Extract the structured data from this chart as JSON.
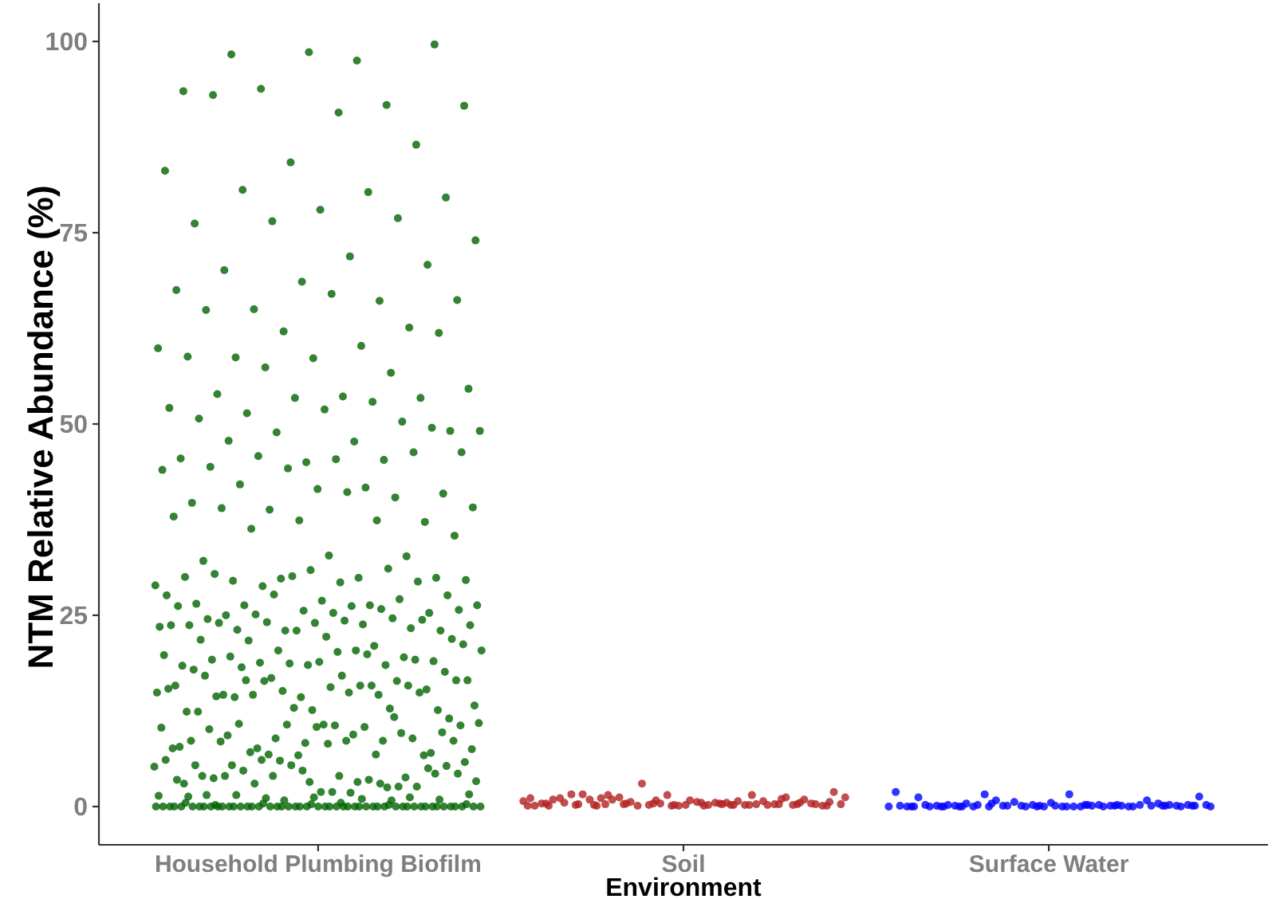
{
  "chart_data": {
    "type": "scatter",
    "xlabel": "Environment",
    "ylabel": "NTM Relative Abundance (%)",
    "categories": [
      "Household Plumbing Biofilm",
      "Soil",
      "Surface Water"
    ],
    "ylim": [
      -5,
      105
    ],
    "yticks": [
      0,
      25,
      50,
      75,
      100
    ],
    "marker": "circle",
    "series": [
      {
        "color": "#006400",
        "x": [
          "Household Plumbing Biofilm",
          "Household Plumbing Biofilm",
          "Household Plumbing Biofilm",
          "Household Plumbing Biofilm",
          "Household Plumbing Biofilm",
          "Household Plumbing Biofilm",
          "Household Plumbing Biofilm",
          "Household Plumbing Biofilm",
          "Household Plumbing Biofilm",
          "Household Plumbing Biofilm",
          "Household Plumbing Biofilm",
          "Household Plumbing Biofilm",
          "Household Plumbing Biofilm",
          "Household Plumbing Biofilm",
          "Household Plumbing Biofilm",
          "Household Plumbing Biofilm",
          "Household Plumbing Biofilm",
          "Household Plumbing Biofilm",
          "Household Plumbing Biofilm",
          "Household Plumbing Biofilm",
          "Household Plumbing Biofilm",
          "Household Plumbing Biofilm",
          "Household Plumbing Biofilm",
          "Household Plumbing Biofilm",
          "Household Plumbing Biofilm",
          "Household Plumbing Biofilm",
          "Household Plumbing Biofilm",
          "Household Plumbing Biofilm",
          "Household Plumbing Biofilm",
          "Household Plumbing Biofilm",
          "Household Plumbing Biofilm",
          "Household Plumbing Biofilm",
          "Household Plumbing Biofilm",
          "Household Plumbing Biofilm",
          "Household Plumbing Biofilm",
          "Household Plumbing Biofilm",
          "Household Plumbing Biofilm",
          "Household Plumbing Biofilm",
          "Household Plumbing Biofilm",
          "Household Plumbing Biofilm",
          "Household Plumbing Biofilm",
          "Household Plumbing Biofilm",
          "Household Plumbing Biofilm",
          "Household Plumbing Biofilm",
          "Household Plumbing Biofilm",
          "Household Plumbing Biofilm",
          "Household Plumbing Biofilm",
          "Household Plumbing Biofilm",
          "Household Plumbing Biofilm",
          "Household Plumbing Biofilm",
          "Household Plumbing Biofilm",
          "Household Plumbing Biofilm",
          "Household Plumbing Biofilm",
          "Household Plumbing Biofilm",
          "Household Plumbing Biofilm",
          "Household Plumbing Biofilm",
          "Household Plumbing Biofilm",
          "Household Plumbing Biofilm",
          "Household Plumbing Biofilm",
          "Household Plumbing Biofilm",
          "Household Plumbing Biofilm",
          "Household Plumbing Biofilm",
          "Household Plumbing Biofilm",
          "Household Plumbing Biofilm",
          "Household Plumbing Biofilm",
          "Household Plumbing Biofilm",
          "Household Plumbing Biofilm",
          "Household Plumbing Biofilm",
          "Household Plumbing Biofilm",
          "Household Plumbing Biofilm",
          "Household Plumbing Biofilm",
          "Household Plumbing Biofilm",
          "Household Plumbing Biofilm",
          "Household Plumbing Biofilm",
          "Household Plumbing Biofilm",
          "Household Plumbing Biofilm",
          "Household Plumbing Biofilm",
          "Household Plumbing Biofilm",
          "Household Plumbing Biofilm",
          "Household Plumbing Biofilm",
          "Household Plumbing Biofilm",
          "Household Plumbing Biofilm",
          "Household Plumbing Biofilm",
          "Household Plumbing Biofilm",
          "Household Plumbing Biofilm",
          "Household Plumbing Biofilm",
          "Household Plumbing Biofilm",
          "Household Plumbing Biofilm",
          "Household Plumbing Biofilm",
          "Household Plumbing Biofilm",
          "Household Plumbing Biofilm",
          "Household Plumbing Biofilm",
          "Household Plumbing Biofilm",
          "Household Plumbing Biofilm",
          "Household Plumbing Biofilm",
          "Household Plumbing Biofilm",
          "Household Plumbing Biofilm",
          "Household Plumbing Biofilm",
          "Household Plumbing Biofilm",
          "Household Plumbing Biofilm",
          "Household Plumbing Biofilm",
          "Household Plumbing Biofilm",
          "Household Plumbing Biofilm",
          "Household Plumbing Biofilm",
          "Household Plumbing Biofilm",
          "Household Plumbing Biofilm",
          "Household Plumbing Biofilm",
          "Household Plumbing Biofilm",
          "Household Plumbing Biofilm",
          "Household Plumbing Biofilm",
          "Household Plumbing Biofilm",
          "Household Plumbing Biofilm",
          "Household Plumbing Biofilm",
          "Household Plumbing Biofilm",
          "Household Plumbing Biofilm",
          "Household Plumbing Biofilm",
          "Household Plumbing Biofilm",
          "Household Plumbing Biofilm",
          "Household Plumbing Biofilm",
          "Household Plumbing Biofilm",
          "Household Plumbing Biofilm",
          "Household Plumbing Biofilm",
          "Household Plumbing Biofilm",
          "Household Plumbing Biofilm",
          "Household Plumbing Biofilm",
          "Household Plumbing Biofilm",
          "Household Plumbing Biofilm",
          "Household Plumbing Biofilm",
          "Household Plumbing Biofilm",
          "Household Plumbing Biofilm",
          "Household Plumbing Biofilm",
          "Household Plumbing Biofilm",
          "Household Plumbing Biofilm",
          "Household Plumbing Biofilm",
          "Household Plumbing Biofilm",
          "Household Plumbing Biofilm",
          "Household Plumbing Biofilm",
          "Household Plumbing Biofilm",
          "Household Plumbing Biofilm",
          "Household Plumbing Biofilm",
          "Household Plumbing Biofilm",
          "Household Plumbing Biofilm",
          "Household Plumbing Biofilm",
          "Household Plumbing Biofilm",
          "Household Plumbing Biofilm",
          "Household Plumbing Biofilm",
          "Household Plumbing Biofilm",
          "Household Plumbing Biofilm",
          "Household Plumbing Biofilm",
          "Household Plumbing Biofilm",
          "Household Plumbing Biofilm",
          "Household Plumbing Biofilm",
          "Household Plumbing Biofilm",
          "Household Plumbing Biofilm",
          "Household Plumbing Biofilm",
          "Household Plumbing Biofilm",
          "Household Plumbing Biofilm",
          "Household Plumbing Biofilm",
          "Household Plumbing Biofilm",
          "Household Plumbing Biofilm",
          "Household Plumbing Biofilm",
          "Household Plumbing Biofilm",
          "Household Plumbing Biofilm",
          "Household Plumbing Biofilm",
          "Household Plumbing Biofilm",
          "Household Plumbing Biofilm",
          "Household Plumbing Biofilm",
          "Household Plumbing Biofilm",
          "Household Plumbing Biofilm",
          "Household Plumbing Biofilm",
          "Household Plumbing Biofilm",
          "Household Plumbing Biofilm",
          "Household Plumbing Biofilm",
          "Household Plumbing Biofilm",
          "Household Plumbing Biofilm",
          "Household Plumbing Biofilm",
          "Household Plumbing Biofilm",
          "Household Plumbing Biofilm",
          "Household Plumbing Biofilm",
          "Household Plumbing Biofilm",
          "Household Plumbing Biofilm",
          "Household Plumbing Biofilm",
          "Household Plumbing Biofilm",
          "Household Plumbing Biofilm",
          "Household Plumbing Biofilm",
          "Household Plumbing Biofilm",
          "Household Plumbing Biofilm",
          "Household Plumbing Biofilm",
          "Household Plumbing Biofilm",
          "Household Plumbing Biofilm",
          "Household Plumbing Biofilm",
          "Household Plumbing Biofilm",
          "Household Plumbing Biofilm",
          "Household Plumbing Biofilm",
          "Household Plumbing Biofilm",
          "Household Plumbing Biofilm",
          "Household Plumbing Biofilm",
          "Household Plumbing Biofilm",
          "Household Plumbing Biofilm",
          "Household Plumbing Biofilm",
          "Household Plumbing Biofilm",
          "Household Plumbing Biofilm",
          "Household Plumbing Biofilm",
          "Household Plumbing Biofilm",
          "Household Plumbing Biofilm",
          "Household Plumbing Biofilm",
          "Household Plumbing Biofilm",
          "Household Plumbing Biofilm",
          "Household Plumbing Biofilm",
          "Household Plumbing Biofilm",
          "Household Plumbing Biofilm",
          "Household Plumbing Biofilm",
          "Household Plumbing Biofilm",
          "Household Plumbing Biofilm",
          "Household Plumbing Biofilm",
          "Household Plumbing Biofilm",
          "Household Plumbing Biofilm",
          "Household Plumbing Biofilm",
          "Household Plumbing Biofilm",
          "Household Plumbing Biofilm",
          "Household Plumbing Biofilm",
          "Household Plumbing Biofilm",
          "Household Plumbing Biofilm",
          "Household Plumbing Biofilm",
          "Household Plumbing Biofilm",
          "Household Plumbing Biofilm",
          "Household Plumbing Biofilm",
          "Household Plumbing Biofilm",
          "Household Plumbing Biofilm",
          "Household Plumbing Biofilm",
          "Household Plumbing Biofilm",
          "Household Plumbing Biofilm",
          "Household Plumbing Biofilm",
          "Household Plumbing Biofilm",
          "Household Plumbing Biofilm",
          "Household Plumbing Biofilm",
          "Household Plumbing Biofilm",
          "Household Plumbing Biofilm",
          "Household Plumbing Biofilm",
          "Household Plumbing Biofilm",
          "Household Plumbing Biofilm",
          "Household Plumbing Biofilm",
          "Household Plumbing Biofilm",
          "Household Plumbing Biofilm",
          "Household Plumbing Biofilm",
          "Household Plumbing Biofilm",
          "Household Plumbing Biofilm",
          "Household Plumbing Biofilm",
          "Household Plumbing Biofilm",
          "Household Plumbing Biofilm",
          "Household Plumbing Biofilm",
          "Household Plumbing Biofilm",
          "Household Plumbing Biofilm",
          "Household Plumbing Biofilm",
          "Household Plumbing Biofilm",
          "Household Plumbing Biofilm",
          "Household Plumbing Biofilm",
          "Household Plumbing Biofilm",
          "Household Plumbing Biofilm",
          "Household Plumbing Biofilm",
          "Household Plumbing Biofilm",
          "Household Plumbing Biofilm",
          "Household Plumbing Biofilm",
          "Household Plumbing Biofilm",
          "Household Plumbing Biofilm",
          "Household Plumbing Biofilm",
          "Household Plumbing Biofilm",
          "Household Plumbing Biofilm",
          "Household Plumbing Biofilm",
          "Household Plumbing Biofilm",
          "Household Plumbing Biofilm",
          "Household Plumbing Biofilm",
          "Household Plumbing Biofilm",
          "Household Plumbing Biofilm",
          "Household Plumbing Biofilm",
          "Household Plumbing Biofilm",
          "Household Plumbing Biofilm",
          "Household Plumbing Biofilm",
          "Household Plumbing Biofilm",
          "Household Plumbing Biofilm",
          "Household Plumbing Biofilm",
          "Household Plumbing Biofilm",
          "Household Plumbing Biofilm",
          "Household Plumbing Biofilm",
          "Household Plumbing Biofilm",
          "Household Plumbing Biofilm",
          "Household Plumbing Biofilm",
          "Household Plumbing Biofilm",
          "Household Plumbing Biofilm",
          "Household Plumbing Biofilm",
          "Household Plumbing Biofilm",
          "Household Plumbing Biofilm",
          "Household Plumbing Biofilm",
          "Household Plumbing Biofilm",
          "Household Plumbing Biofilm",
          "Household Plumbing Biofilm",
          "Household Plumbing Biofilm",
          "Household Plumbing Biofilm",
          "Household Plumbing Biofilm",
          "Household Plumbing Biofilm",
          "Household Plumbing Biofilm",
          "Household Plumbing Biofilm",
          "Household Plumbing Biofilm",
          "Household Plumbing Biofilm",
          "Household Plumbing Biofilm",
          "Household Plumbing Biofilm",
          "Household Plumbing Biofilm",
          "Household Plumbing Biofilm",
          "Household Plumbing Biofilm",
          "Household Plumbing Biofilm",
          "Household Plumbing Biofilm",
          "Household Plumbing Biofilm",
          "Household Plumbing Biofilm",
          "Household Plumbing Biofilm",
          "Household Plumbing Biofilm",
          "Household Plumbing Biofilm",
          "Household Plumbing Biofilm",
          "Household Plumbing Biofilm",
          "Household Plumbing Biofilm",
          "Household Plumbing Biofilm",
          "Household Plumbing Biofilm",
          "Household Plumbing Biofilm",
          "Household Plumbing Biofilm",
          "Household Plumbing Biofilm",
          "Household Plumbing Biofilm",
          "Household Plumbing Biofilm",
          "Household Plumbing Biofilm",
          "Household Plumbing Biofilm",
          "Household Plumbing Biofilm",
          "Household Plumbing Biofilm",
          "Household Plumbing Biofilm",
          "Household Plumbing Biofilm"
        ],
        "values": [
          97.5,
          98.3,
          99.6,
          98.6,
          93.5,
          91.7,
          93.8,
          91.6,
          90.7,
          93.0,
          86.5,
          84.2,
          83.1,
          80.3,
          80.6,
          79.6,
          78.0,
          76.2,
          76.9,
          76.5,
          74.0,
          71.9,
          70.1,
          70.8,
          68.6,
          67.5,
          66.1,
          65.0,
          66.2,
          67.0,
          64.9,
          62.6,
          62.1,
          59.9,
          60.2,
          58.7,
          61.9,
          58.6,
          58.8,
          56.7,
          57.4,
          54.6,
          53.6,
          53.9,
          53.4,
          53.4,
          52.1,
          52.9,
          51.4,
          49.1,
          51.9,
          50.7,
          50.3,
          48.9,
          49.1,
          47.7,
          47.8,
          49.5,
          45.0,
          45.5,
          45.3,
          45.8,
          46.3,
          45.4,
          44.4,
          46.3,
          44.2,
          44.0,
          41.7,
          42.1,
          40.9,
          41.5,
          39.7,
          40.4,
          38.8,
          39.1,
          41.1,
          39.0,
          37.2,
          37.4,
          37.9,
          37.4,
          36.3,
          35.4,
          32.8,
          32.1,
          32.7,
          29.8,
          28.9,
          29.9,
          29.5,
          29.9,
          30.9,
          30.0,
          31.1,
          28.8,
          29.6,
          29.3,
          30.4,
          29.4,
          30.1,
          27.6,
          26.3,
          26.3,
          27.6,
          26.9,
          26.5,
          27.1,
          27.7,
          26.3,
          26.2,
          25.0,
          25.3,
          25.6,
          26.2,
          25.8,
          25.1,
          25.7,
          25.3,
          24.5,
          23.3,
          23.0,
          23.5,
          23.8,
          23.1,
          23.0,
          24.0,
          23.7,
          24.6,
          24.1,
          23.7,
          24.3,
          24.0,
          24.4,
          23.0,
          23.7,
          21.0,
          21.7,
          21.9,
          22.2,
          21.8,
          19.5,
          20.4,
          20.4,
          20.4,
          19.6,
          19.0,
          18.5,
          18.4,
          18.5,
          18.8,
          21.2,
          20.2,
          19.2,
          19.2,
          18.7,
          19.8,
          19.9,
          18.2,
          17.6,
          18.9,
          17.9,
          16.4,
          16.8,
          13.2,
          14.9,
          14.6,
          15.3,
          14.3,
          15.8,
          14.6,
          14.6,
          16.5,
          15.6,
          17.1,
          15.8,
          15.1,
          14.9,
          15.8,
          14.3,
          12.6,
          12.6,
          12.4,
          12.8,
          16.4,
          16.5,
          17.1,
          14.4,
          14.9,
          12.9,
          15.4,
          15.8,
          16.5,
          11.5,
          10.7,
          12.4,
          9.6,
          8.9,
          10.9,
          9.4,
          9.3,
          7.0,
          8.3,
          7.8,
          8.6,
          7.6,
          10.6,
          10.6,
          10.1,
          8.9,
          10.7,
          10.3,
          10.4,
          10.8,
          9.7,
          10.4,
          8.6,
          11.7,
          6.8,
          7.5,
          8.6,
          8.5,
          6.7,
          6.7,
          7.6,
          6.8,
          7.1,
          8.6,
          8.2,
          4.0,
          3.8,
          6.0,
          5.2,
          3.2,
          5.4,
          4.3,
          3.2,
          3.0,
          2.5,
          6.1,
          5.8,
          4.0,
          3.7,
          2.6,
          5.4,
          6.1,
          3.5,
          4.7,
          5.3,
          1.9,
          5.4,
          2.6,
          4.0,
          3.3,
          1.8,
          4.0,
          5.0,
          4.7,
          3.5,
          3.0,
          3.0,
          4.3,
          1.9,
          1.5,
          1.2,
          0.8,
          1.4,
          1.0,
          1.5,
          0.9,
          1.2,
          1.3,
          0.8,
          1.1,
          1.6,
          0,
          0,
          0,
          0,
          0,
          0,
          0,
          0,
          0,
          0,
          0,
          0,
          0,
          0,
          0,
          0,
          0,
          0,
          0,
          0,
          0,
          0,
          0,
          0,
          0,
          0,
          0,
          0,
          0,
          0,
          0,
          0,
          0,
          0,
          0,
          0,
          0,
          0,
          0,
          0,
          0,
          0,
          0,
          0,
          0,
          0,
          0,
          0,
          0,
          0,
          0.3,
          0.5,
          0.2,
          0.4,
          0.3,
          0.5,
          0.2
        ]
      },
      {
        "color": "#b22222",
        "x": [
          "Soil",
          "Soil",
          "Soil",
          "Soil",
          "Soil",
          "Soil",
          "Soil",
          "Soil",
          "Soil",
          "Soil",
          "Soil",
          "Soil",
          "Soil",
          "Soil",
          "Soil",
          "Soil",
          "Soil",
          "Soil",
          "Soil",
          "Soil",
          "Soil",
          "Soil",
          "Soil",
          "Soil",
          "Soil",
          "Soil",
          "Soil",
          "Soil",
          "Soil",
          "Soil",
          "Soil",
          "Soil",
          "Soil",
          "Soil",
          "Soil",
          "Soil",
          "Soil",
          "Soil",
          "Soil",
          "Soil",
          "Soil",
          "Soil",
          "Soil",
          "Soil",
          "Soil",
          "Soil",
          "Soil",
          "Soil",
          "Soil",
          "Soil",
          "Soil",
          "Soil",
          "Soil",
          "Soil",
          "Soil",
          "Soil",
          "Soil",
          "Soil",
          "Soil",
          "Soil",
          "Soil",
          "Soil",
          "Soil",
          "Soil",
          "Soil",
          "Soil",
          "Soil",
          "Soil",
          "Soil",
          "Soil"
        ],
        "values": [
          0.3,
          0.1,
          0.5,
          0.2,
          0.1,
          1.5,
          0.4,
          0.6,
          0.1,
          0.3,
          1.0,
          0.8,
          1.1,
          0.2,
          1.5,
          0.4,
          0.2,
          1.1,
          0.7,
          0.1,
          0.3,
          0.5,
          0.9,
          0.2,
          1.5,
          0.4,
          0.2,
          1.2,
          0.1,
          0.6,
          1.6,
          0.3,
          0.2,
          0.7,
          0.5,
          1.1,
          0.9,
          0.1,
          0.9,
          0.3,
          0.6,
          1.9,
          0.2,
          1.6,
          1.2,
          0.4,
          0.1,
          0.7,
          0.9,
          0.3,
          0.8,
          0.5,
          0.2,
          3.0,
          1.2,
          0.4,
          0.2,
          0.3,
          0.1,
          0.4,
          0.2,
          0.3,
          0.1,
          0.5,
          0.2,
          0.3,
          0.4,
          0.1,
          0.2,
          0.3
        ]
      },
      {
        "color": "#0000ff",
        "x": [
          "Surface Water",
          "Surface Water",
          "Surface Water",
          "Surface Water",
          "Surface Water",
          "Surface Water",
          "Surface Water",
          "Surface Water",
          "Surface Water",
          "Surface Water",
          "Surface Water",
          "Surface Water",
          "Surface Water",
          "Surface Water",
          "Surface Water",
          "Surface Water",
          "Surface Water",
          "Surface Water",
          "Surface Water",
          "Surface Water",
          "Surface Water",
          "Surface Water",
          "Surface Water",
          "Surface Water",
          "Surface Water",
          "Surface Water",
          "Surface Water",
          "Surface Water",
          "Surface Water",
          "Surface Water",
          "Surface Water",
          "Surface Water",
          "Surface Water",
          "Surface Water",
          "Surface Water",
          "Surface Water",
          "Surface Water",
          "Surface Water",
          "Surface Water",
          "Surface Water",
          "Surface Water",
          "Surface Water",
          "Surface Water",
          "Surface Water",
          "Surface Water",
          "Surface Water",
          "Surface Water",
          "Surface Water",
          "Surface Water",
          "Surface Water",
          "Surface Water",
          "Surface Water",
          "Surface Water",
          "Surface Water",
          "Surface Water",
          "Surface Water",
          "Surface Water",
          "Surface Water",
          "Surface Water",
          "Surface Water",
          "Surface Water",
          "Surface Water",
          "Surface Water",
          "Surface Water",
          "Surface Water"
        ],
        "values": [
          0.2,
          0,
          0.1,
          0.1,
          0,
          0.2,
          0.4,
          0.1,
          1.6,
          0,
          0.8,
          0.1,
          1.9,
          0.2,
          0,
          0.1,
          0.5,
          0.2,
          0,
          0.1,
          0.2,
          0,
          0.1,
          0.4,
          0.2,
          0,
          0.1,
          1.6,
          0.2,
          0,
          0.1,
          0.2,
          0.6,
          0,
          0.1,
          0.4,
          0.2,
          0,
          1.2,
          0.1,
          0.8,
          1.3,
          0,
          0.2,
          0.1,
          0,
          0.1,
          0,
          0.2,
          0,
          0.1,
          0,
          0,
          0.1,
          0,
          0.2,
          0,
          0.1,
          0,
          0,
          0.1,
          0,
          0.1,
          0,
          0
        ]
      }
    ]
  }
}
